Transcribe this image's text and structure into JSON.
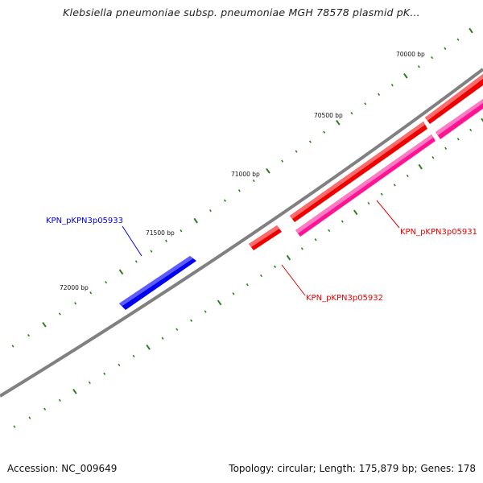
{
  "title": "Klebsiella pneumoniae subsp. pneumoniae MGH 78578 plasmid pK...",
  "footer": {
    "accession": "Accession: NC_009649",
    "summary": "Topology: circular; Length: 175,879 bp; Genes: 178"
  },
  "colors": {
    "backbone": "#808080",
    "tick": "#2e7d1e",
    "forward_gene": "#ff0000",
    "reverse_gene": "#0000ee",
    "other_gene": "#ff1493"
  },
  "ruler_labels": [
    {
      "bp": 70000,
      "text": "70000 bp"
    },
    {
      "bp": 70500,
      "text": "70500 bp"
    },
    {
      "bp": 71000,
      "text": "71000 bp"
    },
    {
      "bp": 71500,
      "text": "71500 bp"
    },
    {
      "bp": 72000,
      "text": "72000 bp"
    }
  ],
  "genes": [
    {
      "id": "KPN_pKPN3p05933",
      "label": "KPN_pKPN3p05933",
      "strand": "reverse",
      "color": "#0000ee"
    },
    {
      "id": "KPN_pKPN3p05932",
      "label": "KPN_pKPN3p05932",
      "strand": "forward",
      "color": "#ff0000"
    },
    {
      "id": "KPN_pKPN3p05931",
      "label": "KPN_pKPN3p05931",
      "strand": "forward",
      "color": "#ff0000"
    }
  ]
}
